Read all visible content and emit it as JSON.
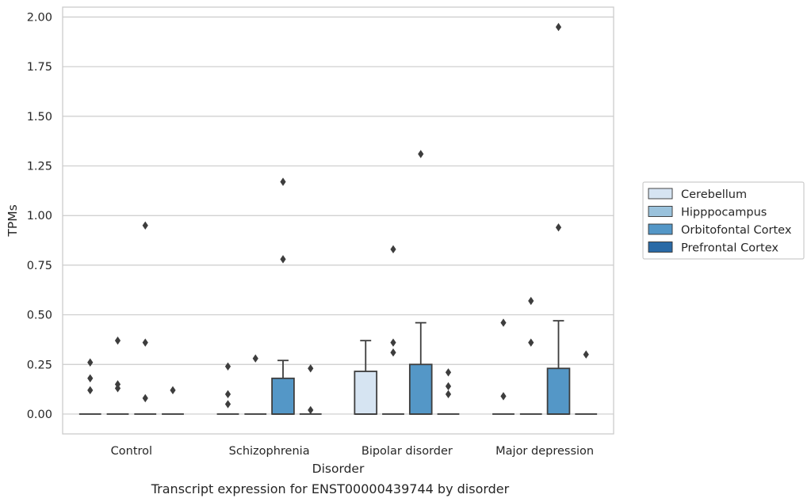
{
  "caption": "Transcript expression for ENST00000439744 by disorder",
  "chart_data": {
    "type": "box",
    "xlabel": "Disorder",
    "ylabel": "TPMs",
    "ylim": [
      -0.1,
      2.05
    ],
    "yticks": [
      0.0,
      0.25,
      0.5,
      0.75,
      1.0,
      1.25,
      1.5,
      1.75,
      2.0
    ],
    "ytick_labels": [
      "0.00",
      "0.25",
      "0.50",
      "0.75",
      "1.00",
      "1.25",
      "1.50",
      "1.75",
      "2.00"
    ],
    "grid": true,
    "legend_position": "right",
    "categories": [
      "Control",
      "Schizophrenia",
      "Bipolar disorder",
      "Major depression"
    ],
    "series": [
      {
        "name": "Cerebellum",
        "color": "#d6e4f2",
        "boxes": [
          {
            "q1": 0,
            "median": 0,
            "q3": 0,
            "whisker_low": 0,
            "whisker_high": 0,
            "outliers": [
              0.26,
              0.18,
              0.12
            ]
          },
          {
            "q1": 0,
            "median": 0,
            "q3": 0,
            "whisker_low": 0,
            "whisker_high": 0,
            "outliers": [
              0.24,
              0.1,
              0.05
            ]
          },
          {
            "q1": 0,
            "median": 0,
            "q3": 0.215,
            "whisker_low": 0,
            "whisker_high": 0.37,
            "outliers": []
          },
          {
            "q1": 0,
            "median": 0,
            "q3": 0,
            "whisker_low": 0,
            "whisker_high": 0,
            "outliers": [
              0.46,
              0.09
            ]
          }
        ]
      },
      {
        "name": "Hipppocampus",
        "color": "#9ac2dc",
        "boxes": [
          {
            "q1": 0,
            "median": 0,
            "q3": 0,
            "whisker_low": 0,
            "whisker_high": 0,
            "outliers": [
              0.37,
              0.15,
              0.13
            ]
          },
          {
            "q1": 0,
            "median": 0,
            "q3": 0,
            "whisker_low": 0,
            "whisker_high": 0,
            "outliers": [
              0.28
            ]
          },
          {
            "q1": 0,
            "median": 0,
            "q3": 0,
            "whisker_low": 0,
            "whisker_high": 0,
            "outliers": [
              0.83,
              0.36,
              0.31
            ]
          },
          {
            "q1": 0,
            "median": 0,
            "q3": 0,
            "whisker_low": 0,
            "whisker_high": 0,
            "outliers": [
              0.57,
              0.36
            ]
          }
        ]
      },
      {
        "name": "Orbitofontal Cortex",
        "color": "#5497c7",
        "boxes": [
          {
            "q1": 0,
            "median": 0,
            "q3": 0,
            "whisker_low": 0,
            "whisker_high": 0,
            "outliers": [
              0.95,
              0.36,
              0.08
            ]
          },
          {
            "q1": 0,
            "median": 0,
            "q3": 0.18,
            "whisker_low": 0,
            "whisker_high": 0.27,
            "outliers": [
              1.17,
              0.78
            ]
          },
          {
            "q1": 0,
            "median": 0,
            "q3": 0.25,
            "whisker_low": 0,
            "whisker_high": 0.46,
            "outliers": [
              1.31
            ]
          },
          {
            "q1": 0,
            "median": 0,
            "q3": 0.23,
            "whisker_low": 0,
            "whisker_high": 0.47,
            "outliers": [
              1.95,
              0.94
            ]
          }
        ]
      },
      {
        "name": "Prefrontal Cortex",
        "color": "#2a6aa6",
        "boxes": [
          {
            "q1": 0,
            "median": 0,
            "q3": 0,
            "whisker_low": 0,
            "whisker_high": 0,
            "outliers": [
              0.12
            ]
          },
          {
            "q1": 0,
            "median": 0,
            "q3": 0,
            "whisker_low": 0,
            "whisker_high": 0,
            "outliers": [
              0.23,
              0.02
            ]
          },
          {
            "q1": 0,
            "median": 0,
            "q3": 0,
            "whisker_low": 0,
            "whisker_high": 0,
            "outliers": [
              0.21,
              0.14,
              0.1
            ]
          },
          {
            "q1": 0,
            "median": 0,
            "q3": 0,
            "whisker_low": 0,
            "whisker_high": 0,
            "outliers": [
              0.3
            ]
          }
        ]
      }
    ]
  }
}
